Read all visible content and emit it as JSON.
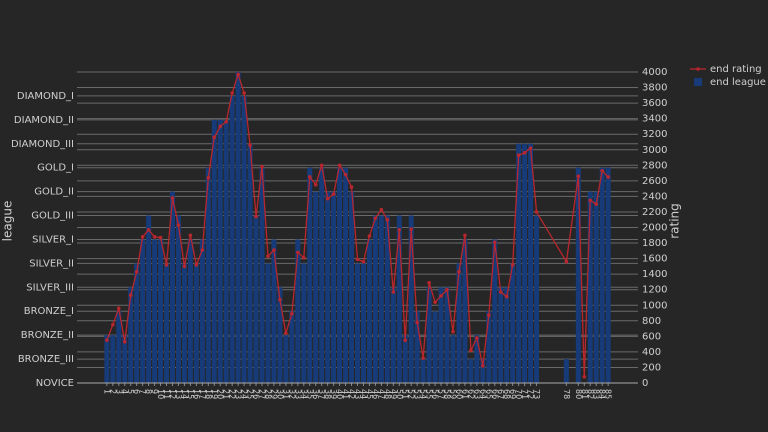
{
  "chart_data": {
    "type": "bar",
    "y_label": "league",
    "y2_label": "rating",
    "x": [
      1,
      2,
      3,
      4,
      5,
      6,
      7,
      8,
      9,
      10,
      11,
      12,
      13,
      14,
      15,
      16,
      17,
      18,
      19,
      20,
      21,
      22,
      23,
      24,
      25,
      26,
      27,
      28,
      29,
      30,
      31,
      32,
      33,
      34,
      35,
      36,
      37,
      38,
      39,
      40,
      41,
      42,
      43,
      44,
      45,
      46,
      47,
      48,
      49,
      50,
      51,
      52,
      53,
      54,
      55,
      56,
      57,
      58,
      59,
      60,
      61,
      62,
      63,
      64,
      65,
      66,
      67,
      68,
      69,
      70,
      71,
      72,
      73,
      78,
      80,
      81,
      82,
      83,
      84,
      85
    ],
    "xticks": [
      1,
      2,
      3,
      4,
      5,
      6,
      7,
      8,
      9,
      10,
      11,
      12,
      13,
      14,
      15,
      16,
      17,
      18,
      19,
      20,
      21,
      22,
      23,
      24,
      25,
      26,
      27,
      28,
      29,
      30,
      31,
      32,
      33,
      34,
      35,
      36,
      37,
      38,
      39,
      40,
      41,
      42,
      43,
      44,
      45,
      46,
      47,
      48,
      49,
      50,
      51,
      52,
      53,
      54,
      55,
      56,
      57,
      58,
      59,
      60,
      61,
      62,
      63,
      64,
      65,
      66,
      67,
      68,
      69,
      70,
      71,
      72,
      73,
      78,
      80,
      81,
      82,
      83,
      84,
      85
    ],
    "xlim": [
      -4,
      90
    ],
    "series": [
      {
        "name": "end rating",
        "type": "line",
        "axis": "y2",
        "color": "#b8262e",
        "values": [
          550,
          750,
          960,
          530,
          1130,
          1430,
          1880,
          1970,
          1880,
          1870,
          1520,
          2380,
          2030,
          1500,
          1900,
          1520,
          1710,
          2640,
          3160,
          3300,
          3360,
          3730,
          3970,
          3730,
          3060,
          2140,
          2780,
          1630,
          1710,
          1070,
          640,
          890,
          1680,
          1610,
          2650,
          2550,
          2800,
          2370,
          2430,
          2800,
          2680,
          2520,
          1590,
          1560,
          1890,
          2120,
          2230,
          2100,
          1170,
          1970,
          550,
          1980,
          780,
          320,
          1290,
          1040,
          1120,
          1200,
          660,
          1430,
          1900,
          420,
          580,
          220,
          870,
          1810,
          1170,
          1110,
          1520,
          2930,
          2960,
          3020,
          2200,
          1560,
          2660,
          80,
          2350,
          2300,
          2730,
          2650
        ]
      },
      {
        "name": "end league",
        "type": "bar",
        "axis": "y",
        "color": "#173a78",
        "values": [
          2,
          2,
          3,
          2,
          4,
          5,
          6,
          7,
          6,
          6,
          5,
          8,
          7,
          5,
          6,
          5,
          6,
          9,
          11,
          11,
          11,
          12,
          13,
          12,
          10,
          7,
          9,
          5,
          6,
          4,
          2,
          3,
          6,
          5,
          9,
          8,
          9,
          8,
          8,
          9,
          9,
          8,
          5,
          5,
          6,
          7,
          7,
          7,
          4,
          7,
          2,
          7,
          3,
          1,
          4,
          3,
          4,
          4,
          2,
          5,
          6,
          1,
          2,
          1,
          3,
          6,
          4,
          4,
          5,
          10,
          10,
          10,
          7,
          1,
          9,
          0,
          8,
          8,
          9,
          9
        ]
      }
    ],
    "ylim": [
      0,
      13
    ],
    "yticks": [
      {
        "value": 0,
        "label": "NOVICE"
      },
      {
        "value": 1,
        "label": "BRONZE_III"
      },
      {
        "value": 2,
        "label": "BRONZE_II"
      },
      {
        "value": 3,
        "label": "BRONZE_I"
      },
      {
        "value": 4,
        "label": "SILVER_III"
      },
      {
        "value": 5,
        "label": "SILVER_II"
      },
      {
        "value": 6,
        "label": "SILVER_I"
      },
      {
        "value": 7,
        "label": "GOLD_III"
      },
      {
        "value": 8,
        "label": "GOLD_II"
      },
      {
        "value": 9,
        "label": "GOLD_I"
      },
      {
        "value": 10,
        "label": "DIAMOND_III"
      },
      {
        "value": 11,
        "label": "DIAMOND_II"
      },
      {
        "value": 12,
        "label": "DIAMOND_I"
      }
    ],
    "y2lim": [
      0,
      4000
    ],
    "y2ticks": [
      0,
      200,
      400,
      600,
      800,
      1000,
      1200,
      1400,
      1600,
      1800,
      2000,
      2200,
      2400,
      2600,
      2800,
      3000,
      3200,
      3400,
      3600,
      3800,
      4000
    ],
    "grid": true,
    "legend": "top-right"
  }
}
